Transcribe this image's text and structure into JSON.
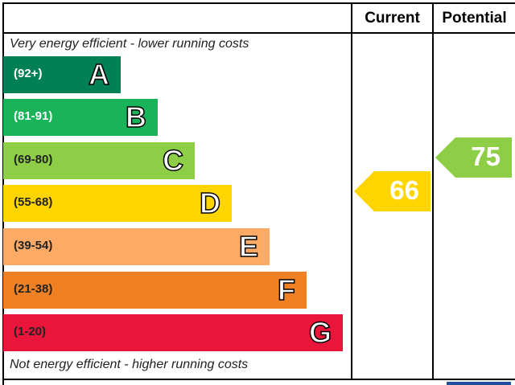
{
  "chart_data": {
    "type": "bar",
    "columns": [
      "Current",
      "Potential"
    ],
    "top_note": "Very energy efficient - lower running costs",
    "bottom_note": "Not energy efficient - higher running costs",
    "bands": [
      {
        "letter": "A",
        "range": "(92+)",
        "color": "#008054",
        "text_color": "#ffffff"
      },
      {
        "letter": "B",
        "range": "(81-91)",
        "color": "#19b459",
        "text_color": "#ffffff"
      },
      {
        "letter": "C",
        "range": "(69-80)",
        "color": "#8dce46",
        "text_color": "#222222"
      },
      {
        "letter": "D",
        "range": "(55-68)",
        "color": "#ffd500",
        "text_color": "#222222"
      },
      {
        "letter": "E",
        "range": "(39-54)",
        "color": "#fcaa65",
        "text_color": "#222222"
      },
      {
        "letter": "F",
        "range": "(21-38)",
        "color": "#ef8023",
        "text_color": "#222222"
      },
      {
        "letter": "G",
        "range": "(1-20)",
        "color": "#e9153b",
        "text_color": "#222222"
      }
    ],
    "current": {
      "value": 66,
      "label": "66",
      "band": "D",
      "color": "#ffd500"
    },
    "potential": {
      "value": 75,
      "label": "75",
      "band": "C",
      "color": "#8dce46"
    }
  }
}
